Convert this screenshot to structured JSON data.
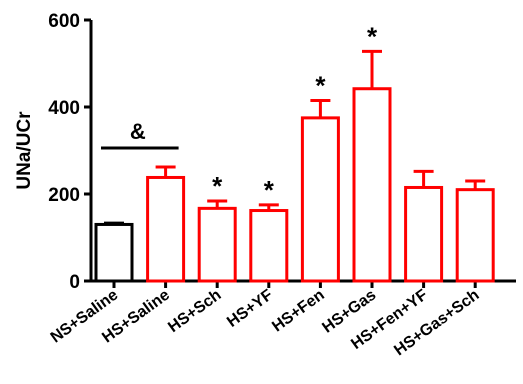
{
  "chart_data": {
    "type": "bar",
    "ylabel": "UNa/UCr",
    "ylim": [
      0,
      600
    ],
    "yticks": [
      0,
      200,
      400,
      600
    ],
    "categories": [
      "NS+Saline",
      "HS+Saline",
      "HS+Sch",
      "HS+YF",
      "HS+Fen",
      "HS+Gas",
      "HS+Fen+YF",
      "HS+Gas+Sch"
    ],
    "values": [
      130,
      238,
      167,
      162,
      375,
      442,
      215,
      210
    ],
    "errors": [
      3,
      24,
      17,
      13,
      40,
      86,
      37,
      20
    ],
    "significance": [
      "",
      "",
      "*",
      "*",
      "*",
      "*",
      "",
      ""
    ],
    "comparison_bracket": {
      "from": "NS+Saline",
      "to": "HS+Saline",
      "symbol": "&"
    },
    "bar_colors": [
      "#000000",
      "#ff0000",
      "#ff0000",
      "#ff0000",
      "#ff0000",
      "#ff0000",
      "#ff0000",
      "#ff0000"
    ],
    "bar_fill": "#ffffff",
    "grid": false,
    "legend": false
  }
}
